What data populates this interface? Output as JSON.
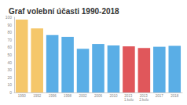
{
  "chart_data": {
    "type": "bar",
    "title": "Graf volební účasti 1990-2018",
    "categories": [
      "1990",
      "1992",
      "1996",
      "1998",
      "2002",
      "2006",
      "2010",
      "2013 1.kolo",
      "2013 2.kolo",
      "2017",
      "2018"
    ],
    "values": [
      96.8,
      85.1,
      76.3,
      74.0,
      58.0,
      64.5,
      62.6,
      61.3,
      59.1,
      60.8,
      61.9
    ],
    "colors": [
      "#f5c76a",
      "#f5c76a",
      "#5aaee6",
      "#5aaee6",
      "#5aaee6",
      "#5aaee6",
      "#5aaee6",
      "#e0575b",
      "#e0575b",
      "#5aaee6",
      "#5aaee6"
    ],
    "ylim": [
      0,
      100
    ],
    "yticks": [
      0,
      10,
      20,
      30,
      40,
      50,
      60,
      70,
      80,
      90,
      100
    ],
    "grid": false
  }
}
